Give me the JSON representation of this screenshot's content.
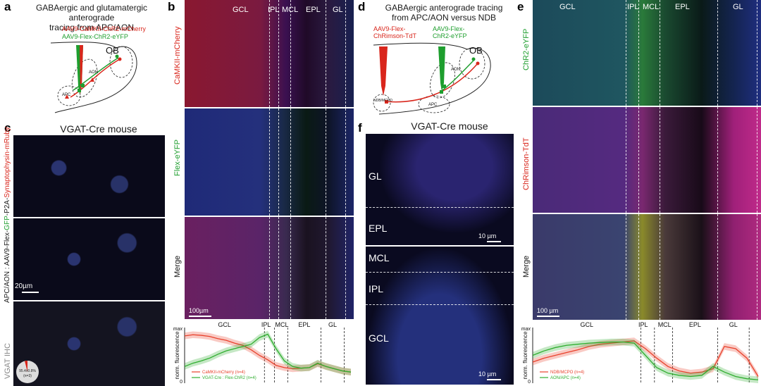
{
  "panels": {
    "a": {
      "letter": "a",
      "title_line1": "GABAergic and glutamatergic anterograde",
      "title_line2": "tracing from APC/AON",
      "virus_red": "AAV9-CaMKII-ChR2-mCherry",
      "virus_green": "AAV9-Flex-ChR2-eYFP",
      "region_ob": "OB",
      "region_aon": "AON",
      "region_apc": "APC"
    },
    "c": {
      "letter": "c",
      "title": "VGAT-Cre mouse",
      "side_label_prefix": "APC/AON : AAV9-Flex-",
      "side_label_gfp": "GFP",
      "side_label_mid": "-P2A-",
      "side_label_syn": "Synaptophysin-mRuby",
      "bottom_label": "VGAT IHC",
      "scalebar": "20µm",
      "pie_value": "95.4±0.8%",
      "pie_n": "(n=3)"
    },
    "b": {
      "letter": "b",
      "layers": [
        "GCL",
        "IPL",
        "MCL",
        "EPL",
        "GL"
      ],
      "row_labels": [
        "CaMKII-mCherry",
        "Flex-eYFP",
        "Merge"
      ],
      "scalebar": "100µm"
    },
    "d": {
      "letter": "d",
      "title_line1": "GABAergic anterograde tracing",
      "title_line2": "from APC/AON versus NDB",
      "virus_red_line1": "AAV9-Flex-",
      "virus_red_line2": "ChRimson-TdT",
      "virus_green_line1": "AAV9-Flex-",
      "virus_green_line2": "ChR2-eYFP",
      "region_ob": "OB",
      "region_aon": "AON",
      "region_apc": "APC",
      "region_ndb": "NDB/MCPO"
    },
    "f": {
      "letter": "f",
      "title": "VGAT-Cre mouse",
      "top_labels": [
        "GL",
        "EPL"
      ],
      "bottom_labels": [
        "MCL",
        "IPL",
        "GCL"
      ],
      "scalebar_top": "10 µm",
      "scalebar_bottom": "10 µm"
    },
    "e": {
      "letter": "e",
      "layers": [
        "GCL",
        "IPL",
        "MCL",
        "EPL",
        "GL"
      ],
      "row_labels": [
        "ChR2-eYFP",
        "ChRimson-TdT",
        "Merge"
      ],
      "scalebar": "100 µm"
    }
  },
  "chart_data": [
    {
      "type": "line",
      "panel": "b",
      "ylabel": "norm. fluorescence",
      "ytick_top": "max",
      "ytick_bottom": "0",
      "ylim": [
        0,
        1
      ],
      "xlim": [
        0,
        1
      ],
      "layer_labels": [
        "GCL",
        "IPL",
        "MCL",
        "EPL",
        "GL"
      ],
      "x": [
        0,
        0.05,
        0.1,
        0.15,
        0.2,
        0.25,
        0.3,
        0.35,
        0.4,
        0.45,
        0.5,
        0.55,
        0.6,
        0.65,
        0.7,
        0.75,
        0.8,
        0.85,
        0.9,
        0.95,
        1.0
      ],
      "series": [
        {
          "name": "CaMKII-mCherry (n=4)",
          "color": "#e8412c",
          "values": [
            0.85,
            0.87,
            0.86,
            0.84,
            0.8,
            0.77,
            0.72,
            0.68,
            0.6,
            0.5,
            0.42,
            0.32,
            0.28,
            0.26,
            0.27,
            0.28,
            0.35,
            0.3,
            0.26,
            0.22,
            0.2
          ]
        },
        {
          "name": "VGAT-Cre : Flex-ChR2 (n=4)",
          "color": "#2fae2f",
          "values": [
            0.3,
            0.36,
            0.4,
            0.45,
            0.52,
            0.58,
            0.62,
            0.66,
            0.7,
            0.82,
            0.88,
            0.62,
            0.4,
            0.3,
            0.27,
            0.28,
            0.36,
            0.3,
            0.26,
            0.22,
            0.2
          ]
        }
      ]
    },
    {
      "type": "line",
      "panel": "e",
      "ylabel": "norm. fluorescence",
      "ytick_top": "max",
      "ytick_bottom": "0",
      "ylim": [
        0,
        1
      ],
      "xlim": [
        0,
        1
      ],
      "layer_labels": [
        "GCL",
        "IPL",
        "MCL",
        "EPL",
        "GL"
      ],
      "x": [
        0,
        0.05,
        0.1,
        0.15,
        0.2,
        0.25,
        0.3,
        0.35,
        0.4,
        0.45,
        0.5,
        0.55,
        0.6,
        0.65,
        0.7,
        0.75,
        0.8,
        0.85,
        0.9,
        0.95,
        1.0
      ],
      "series": [
        {
          "name": "NDB/MCPO (n=4)",
          "color": "#e8412c",
          "values": [
            0.38,
            0.45,
            0.5,
            0.55,
            0.6,
            0.66,
            0.7,
            0.72,
            0.74,
            0.76,
            0.62,
            0.45,
            0.3,
            0.22,
            0.18,
            0.2,
            0.26,
            0.66,
            0.62,
            0.45,
            0.12
          ]
        },
        {
          "name": "AON/APC (n=4)",
          "color": "#2fae2f",
          "values": [
            0.5,
            0.58,
            0.64,
            0.68,
            0.7,
            0.72,
            0.73,
            0.74,
            0.74,
            0.72,
            0.5,
            0.28,
            0.18,
            0.14,
            0.12,
            0.14,
            0.3,
            0.2,
            0.12,
            0.08,
            0.06
          ]
        }
      ]
    }
  ]
}
